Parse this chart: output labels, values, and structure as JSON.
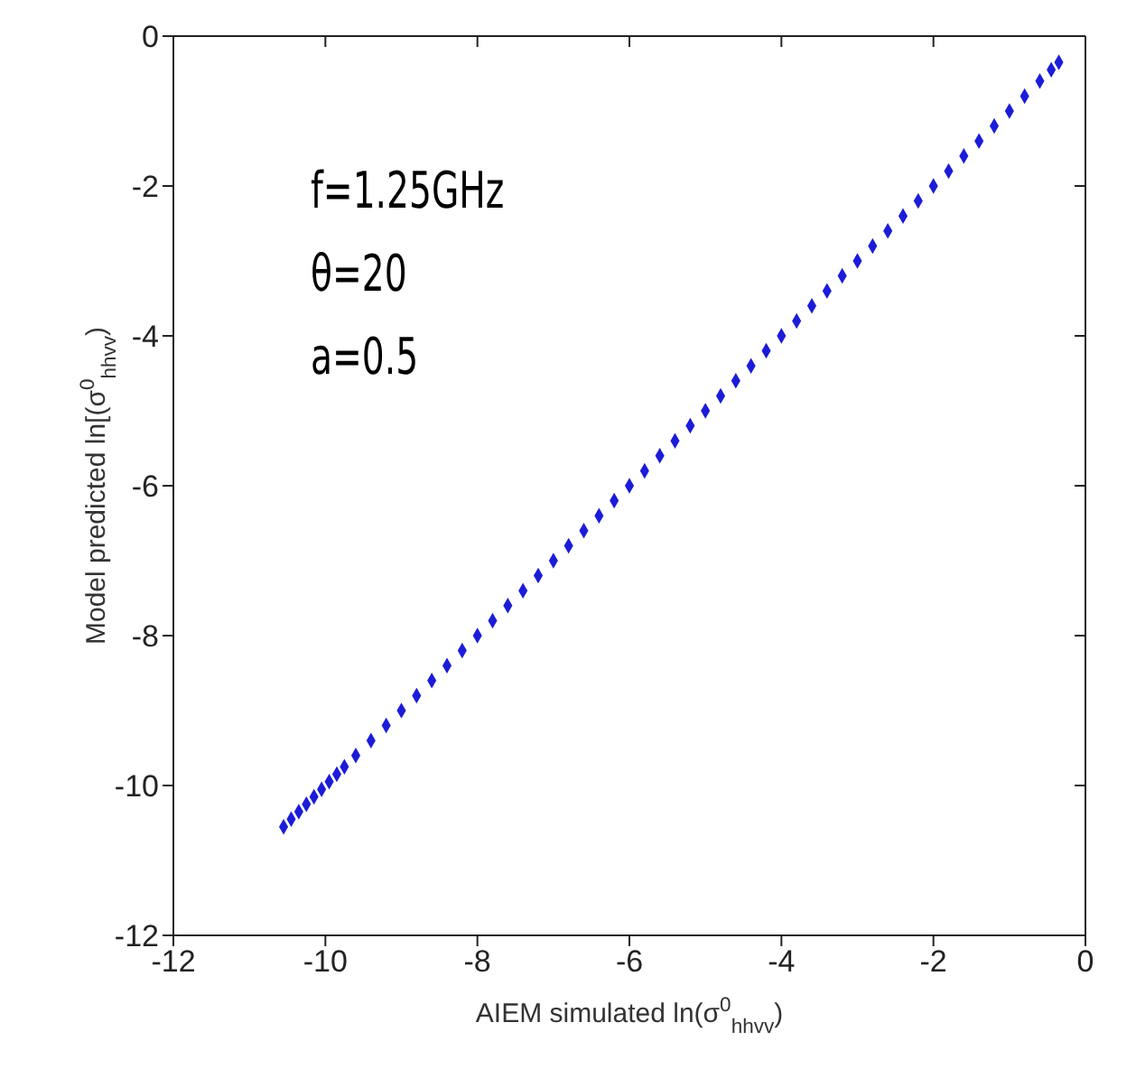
{
  "chart_data": {
    "type": "scatter",
    "xlabel": "AIEM simulated ln(σ$^{0}$$_{hhvv}$)",
    "ylabel": "Model predicted ln[(σ$^{0}$$_{hhvv}$)",
    "annotations": [
      "f=1.25GHz",
      "θ=20",
      "a=0.5"
    ],
    "xlim": [
      -12,
      0
    ],
    "xticks": [
      -12,
      -10,
      -8,
      -6,
      -4,
      -2,
      0
    ],
    "ylim": [
      -12,
      0
    ],
    "yticks": [
      -12,
      -10,
      -8,
      -6,
      -4,
      -2,
      0
    ],
    "marker": "diamond",
    "x": [
      -10.55,
      -10.45,
      -10.35,
      -10.25,
      -10.15,
      -10.05,
      -9.95,
      -9.85,
      -9.75,
      -9.6,
      -9.4,
      -9.2,
      -9.0,
      -8.8,
      -8.6,
      -8.4,
      -8.2,
      -8.0,
      -7.8,
      -7.6,
      -7.4,
      -7.2,
      -7.0,
      -6.8,
      -6.6,
      -6.4,
      -6.2,
      -6.0,
      -5.8,
      -5.6,
      -5.4,
      -5.2,
      -5.0,
      -4.8,
      -4.6,
      -4.4,
      -4.2,
      -4.0,
      -3.8,
      -3.6,
      -3.4,
      -3.2,
      -3.0,
      -2.8,
      -2.6,
      -2.4,
      -2.2,
      -2.0,
      -1.8,
      -1.6,
      -1.4,
      -1.2,
      -1.0,
      -0.8,
      -0.6,
      -0.45,
      -0.35
    ],
    "series": [
      {
        "color": "#1c1cd8",
        "values": [
          -10.55,
          -10.45,
          -10.35,
          -10.25,
          -10.15,
          -10.05,
          -9.95,
          -9.85,
          -9.75,
          -9.6,
          -9.4,
          -9.2,
          -9.0,
          -8.8,
          -8.6,
          -8.4,
          -8.2,
          -8.0,
          -7.8,
          -7.6,
          -7.4,
          -7.2,
          -7.0,
          -6.8,
          -6.6,
          -6.4,
          -6.2,
          -6.0,
          -5.8,
          -5.6,
          -5.4,
          -5.2,
          -5.0,
          -4.8,
          -4.6,
          -4.4,
          -4.2,
          -4.0,
          -3.8,
          -3.6,
          -3.4,
          -3.2,
          -3.0,
          -2.8,
          -2.6,
          -2.4,
          -2.2,
          -2.0,
          -1.8,
          -1.6,
          -1.4,
          -1.2,
          -1.0,
          -0.8,
          -0.6,
          -0.45,
          -0.35
        ]
      }
    ]
  }
}
